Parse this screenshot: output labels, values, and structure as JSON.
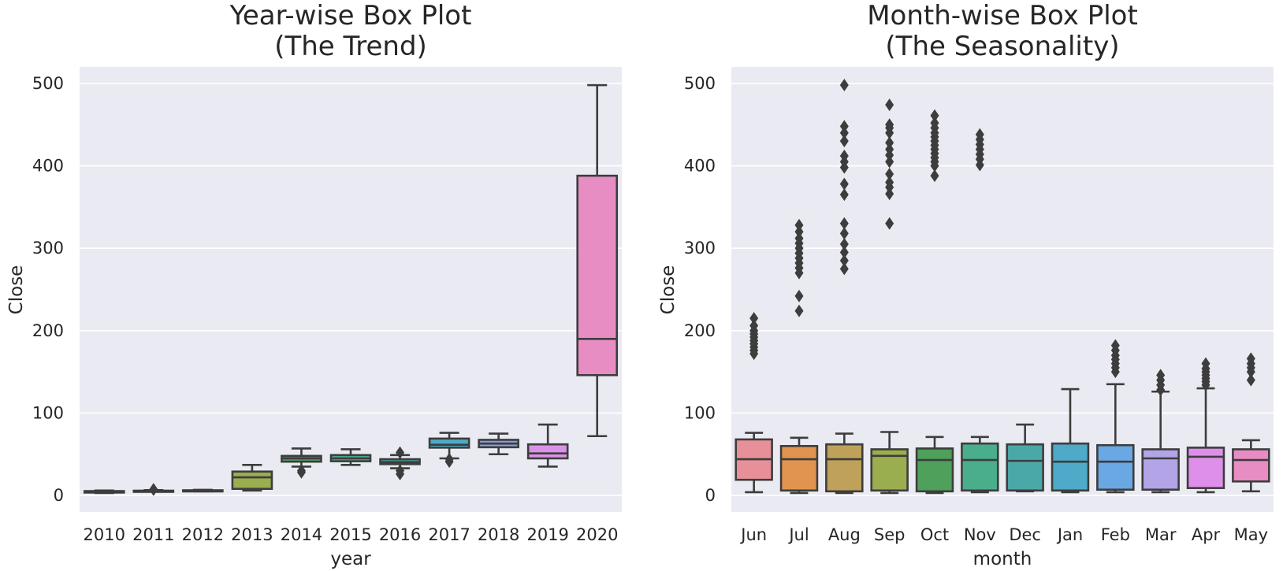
{
  "colors": {
    "plot_bg": "#eaeaf2",
    "grid": "#ffffff",
    "line": "#3d3d3d",
    "year_palette": [
      "#e8909a",
      "#e1944f",
      "#bfa15a",
      "#9aae4f",
      "#4ea05a",
      "#4aae8c",
      "#4aa9a8",
      "#4eaac8",
      "#8b9cd8",
      "#d993e6",
      "#e88dc4"
    ],
    "month_palette": [
      "#e8909a",
      "#e1944f",
      "#bfa15a",
      "#9aae4f",
      "#4ea05a",
      "#4aae8c",
      "#4aa9a8",
      "#4eaac8",
      "#6aa8e3",
      "#b3a4e8",
      "#de8fea",
      "#e88dc4"
    ]
  },
  "chart_data": [
    {
      "type": "box",
      "title": [
        "Year-wise Box Plot",
        "(The Trend)"
      ],
      "xlabel": "year",
      "ylabel": "Close",
      "ylim": [
        -20,
        520
      ],
      "yticks": [
        0,
        100,
        200,
        300,
        400,
        500
      ],
      "grid": true,
      "categories": [
        "2010",
        "2011",
        "2012",
        "2013",
        "2014",
        "2015",
        "2016",
        "2017",
        "2018",
        "2019",
        "2020"
      ],
      "boxes": [
        {
          "whislo": 3,
          "q1": 3.5,
          "med": 4.3,
          "q3": 5.3,
          "whishi": 6,
          "fliers": []
        },
        {
          "whislo": 4.8,
          "q1": 5,
          "med": 5.3,
          "q3": 5.8,
          "whishi": 6.5,
          "fliers": [
            7,
            7.5
          ]
        },
        {
          "whislo": 5,
          "q1": 5.4,
          "med": 5.8,
          "q3": 6.3,
          "whishi": 6.8,
          "fliers": []
        },
        {
          "whislo": 6,
          "q1": 8,
          "med": 22,
          "q3": 29,
          "whishi": 37,
          "fliers": []
        },
        {
          "whislo": 35,
          "q1": 41,
          "med": 45,
          "q3": 48,
          "whishi": 57,
          "fliers": [
            28,
            30
          ]
        },
        {
          "whislo": 37,
          "q1": 41.5,
          "med": 45,
          "q3": 49,
          "whishi": 56,
          "fliers": []
        },
        {
          "whislo": 33,
          "q1": 38,
          "med": 40.5,
          "q3": 44,
          "whishi": 49,
          "fliers": [
            26,
            30,
            52
          ]
        },
        {
          "whislo": 45,
          "q1": 58,
          "med": 61.5,
          "q3": 69,
          "whishi": 76,
          "fliers": [
            41,
            44
          ]
        },
        {
          "whislo": 50,
          "q1": 58.5,
          "med": 63,
          "q3": 67.5,
          "whishi": 75,
          "fliers": []
        },
        {
          "whislo": 35,
          "q1": 45,
          "med": 51,
          "q3": 62,
          "whishi": 86,
          "fliers": []
        },
        {
          "whislo": 72,
          "q1": 146,
          "med": 190,
          "q3": 388,
          "whishi": 498,
          "fliers": []
        }
      ]
    },
    {
      "type": "box",
      "title": [
        "Month-wise Box Plot",
        "(The Seasonality)"
      ],
      "xlabel": "month",
      "ylabel": "Close",
      "ylim": [
        -20,
        520
      ],
      "yticks": [
        0,
        100,
        200,
        300,
        400,
        500
      ],
      "grid": true,
      "categories": [
        "Jun",
        "Jul",
        "Aug",
        "Sep",
        "Oct",
        "Nov",
        "Dec",
        "Jan",
        "Feb",
        "Mar",
        "Apr",
        "May"
      ],
      "boxes": [
        {
          "whislo": 4,
          "q1": 19,
          "med": 44,
          "q3": 68,
          "whishi": 76,
          "fliers": [
            172,
            176,
            180,
            184,
            188,
            192,
            196,
            200,
            206,
            215
          ]
        },
        {
          "whislo": 3,
          "q1": 6,
          "med": 44,
          "q3": 60,
          "whishi": 70,
          "fliers": [
            224,
            242,
            270,
            276,
            282,
            288,
            294,
            300,
            306,
            312,
            320,
            328
          ]
        },
        {
          "whislo": 3,
          "q1": 5,
          "med": 44,
          "q3": 62,
          "whishi": 75,
          "fliers": [
            275,
            285,
            295,
            305,
            318,
            330,
            365,
            378,
            398,
            405,
            412,
            430,
            440,
            448,
            498
          ]
        },
        {
          "whislo": 3,
          "q1": 6,
          "med": 48,
          "q3": 56,
          "whishi": 77,
          "fliers": [
            330,
            366,
            374,
            380,
            390,
            405,
            413,
            420,
            428,
            440,
            446,
            450,
            474
          ]
        },
        {
          "whislo": 3,
          "q1": 5,
          "med": 43,
          "q3": 57,
          "whishi": 71,
          "fliers": [
            388,
            400,
            405,
            410,
            415,
            420,
            425,
            430,
            435,
            440,
            446,
            452,
            461
          ]
        },
        {
          "whislo": 4,
          "q1": 6,
          "med": 43,
          "q3": 63,
          "whishi": 71,
          "fliers": [
            401,
            408,
            414,
            420,
            426,
            432,
            438
          ]
        },
        {
          "whislo": 5,
          "q1": 6,
          "med": 42,
          "q3": 62,
          "whishi": 86,
          "fliers": []
        },
        {
          "whislo": 4,
          "q1": 6,
          "med": 41,
          "q3": 63,
          "whishi": 129,
          "fliers": []
        },
        {
          "whislo": 4,
          "q1": 7,
          "med": 41,
          "q3": 61,
          "whishi": 135,
          "fliers": [
            150,
            155,
            160,
            165,
            170,
            176,
            182
          ]
        },
        {
          "whislo": 4,
          "q1": 7,
          "med": 45,
          "q3": 56,
          "whishi": 126,
          "fliers": [
            128,
            134,
            140,
            146
          ]
        },
        {
          "whislo": 4,
          "q1": 9,
          "med": 47,
          "q3": 58,
          "whishi": 130,
          "fliers": [
            134,
            138,
            142,
            146,
            150,
            154,
            160
          ]
        },
        {
          "whislo": 5,
          "q1": 17,
          "med": 43,
          "q3": 56,
          "whishi": 67,
          "fliers": [
            140,
            150,
            155,
            160,
            166
          ]
        }
      ]
    }
  ]
}
